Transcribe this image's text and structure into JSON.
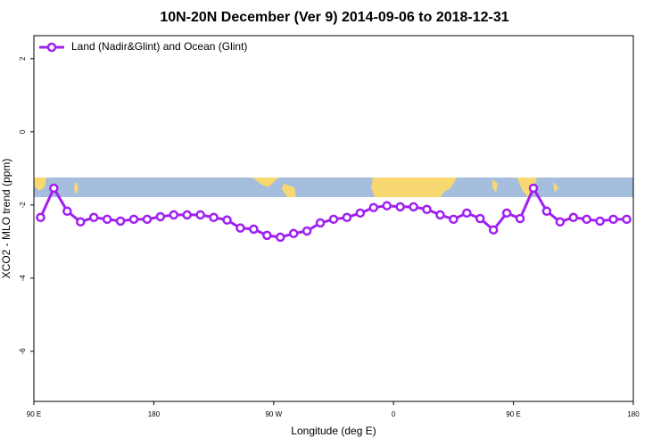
{
  "chart_data": {
    "type": "line",
    "title": "10N-20N December (Ver 9)   2014-09-06 to 2018-12-31",
    "x_label": "Longitude (deg E)",
    "y_label": "XCO2 - MLO trend (ppm)",
    "x": [
      95,
      105,
      115,
      125,
      135,
      145,
      155,
      165,
      175,
      185,
      195,
      205,
      215,
      225,
      235,
      245,
      255,
      265,
      275,
      285,
      295,
      305,
      315,
      325,
      335,
      345,
      355,
      365,
      375,
      385,
      395,
      405,
      415,
      425,
      435,
      445,
      455,
      465,
      475,
      485,
      495,
      505,
      515,
      525,
      535
    ],
    "series": [
      {
        "name": "Land (Nadir&Glint) and Ocean (Glint)",
        "color": "#a020f0",
        "values": [
          -2.34,
          -1.54,
          -2.17,
          -2.46,
          -2.34,
          -2.39,
          -2.44,
          -2.39,
          -2.39,
          -2.32,
          -2.27,
          -2.27,
          -2.27,
          -2.34,
          -2.41,
          -2.63,
          -2.66,
          -2.83,
          -2.88,
          -2.78,
          -2.71,
          -2.49,
          -2.39,
          -2.34,
          -2.22,
          -2.07,
          -2.02,
          -2.05,
          -2.05,
          -2.12,
          -2.27,
          -2.39,
          -2.22,
          -2.37,
          -2.68,
          -2.22,
          -2.37,
          -1.54,
          -2.17,
          -2.46,
          -2.34,
          -2.39,
          -2.44,
          -2.39,
          -2.39
        ]
      }
    ],
    "xlim": [
      90,
      540
    ],
    "xticks": [
      {
        "value": 90,
        "label": "90 E"
      },
      180,
      {
        "value": 270,
        "label": "90 W"
      },
      {
        "value": 360,
        "label": "0"
      },
      {
        "value": 450,
        "label": "90 E"
      },
      {
        "value": 540,
        "label": "180"
      }
    ],
    "ylim": [
      -7.37,
      2.63
    ],
    "yticks": [
      2,
      0,
      -2,
      -4,
      -6
    ],
    "legend": "top-left"
  }
}
